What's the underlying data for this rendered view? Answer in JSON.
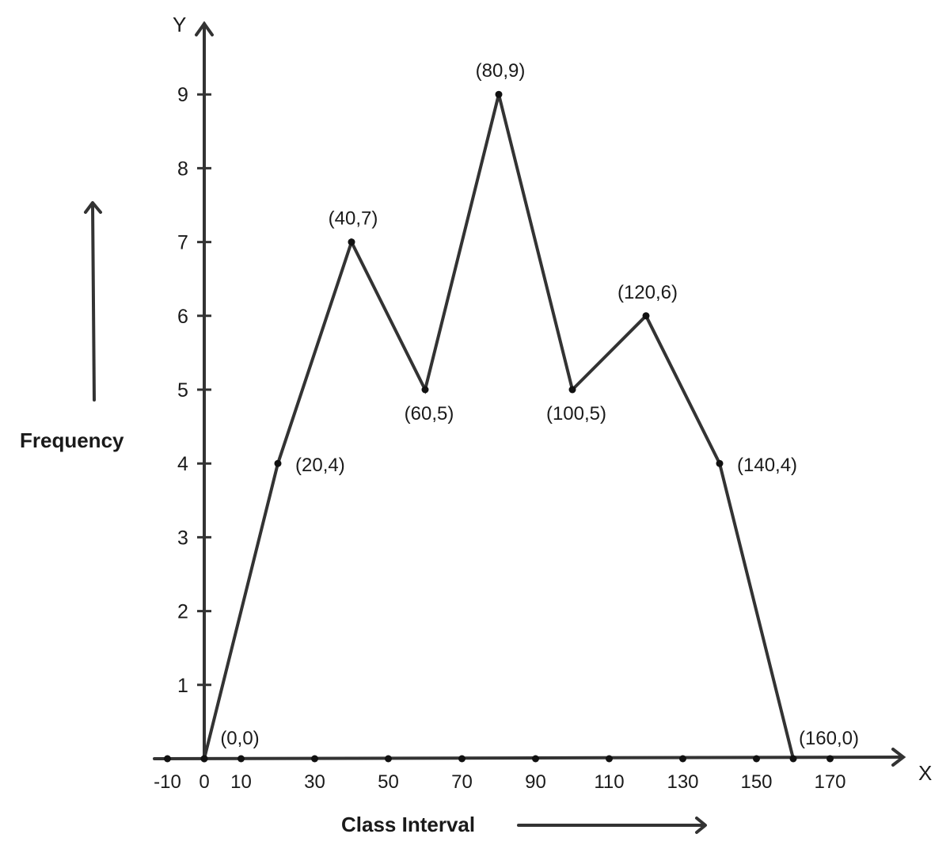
{
  "chart_data": {
    "type": "line",
    "title": "",
    "xlabel": "Class Interval",
    "ylabel": "Frequency",
    "x_axis_letter": "X",
    "y_axis_letter": "Y",
    "xlim": [
      -10,
      180
    ],
    "ylim": [
      0,
      10
    ],
    "grid": false,
    "x_ticks": [
      "-10",
      "0",
      "10",
      "30",
      "50",
      "70",
      "90",
      "110",
      "130",
      "150",
      "170"
    ],
    "x_dot_values": [
      -10,
      0,
      10,
      30,
      50,
      70,
      90,
      110,
      130,
      150,
      170
    ],
    "y_ticks": [
      "1",
      "2",
      "3",
      "4",
      "5",
      "6",
      "7",
      "8",
      "9"
    ],
    "y_tick_values": [
      1,
      2,
      3,
      4,
      5,
      6,
      7,
      8,
      9
    ],
    "series": [
      {
        "x": [
          0,
          20,
          40,
          60,
          80,
          100,
          120,
          140,
          160
        ],
        "y": [
          0,
          4,
          7,
          5,
          9,
          5,
          6,
          4,
          0
        ]
      }
    ],
    "point_labels": [
      "(0,0)",
      "(20,4)",
      "(40,7)",
      "(60,5)",
      "(80,9)",
      "(100,5)",
      "(120,6)",
      "(140,4)",
      "(160,0)"
    ],
    "point_label_positions": [
      "above-right",
      "right",
      "above",
      "below",
      "above",
      "below",
      "above",
      "right",
      "above-right"
    ],
    "line_color": "#333333"
  }
}
